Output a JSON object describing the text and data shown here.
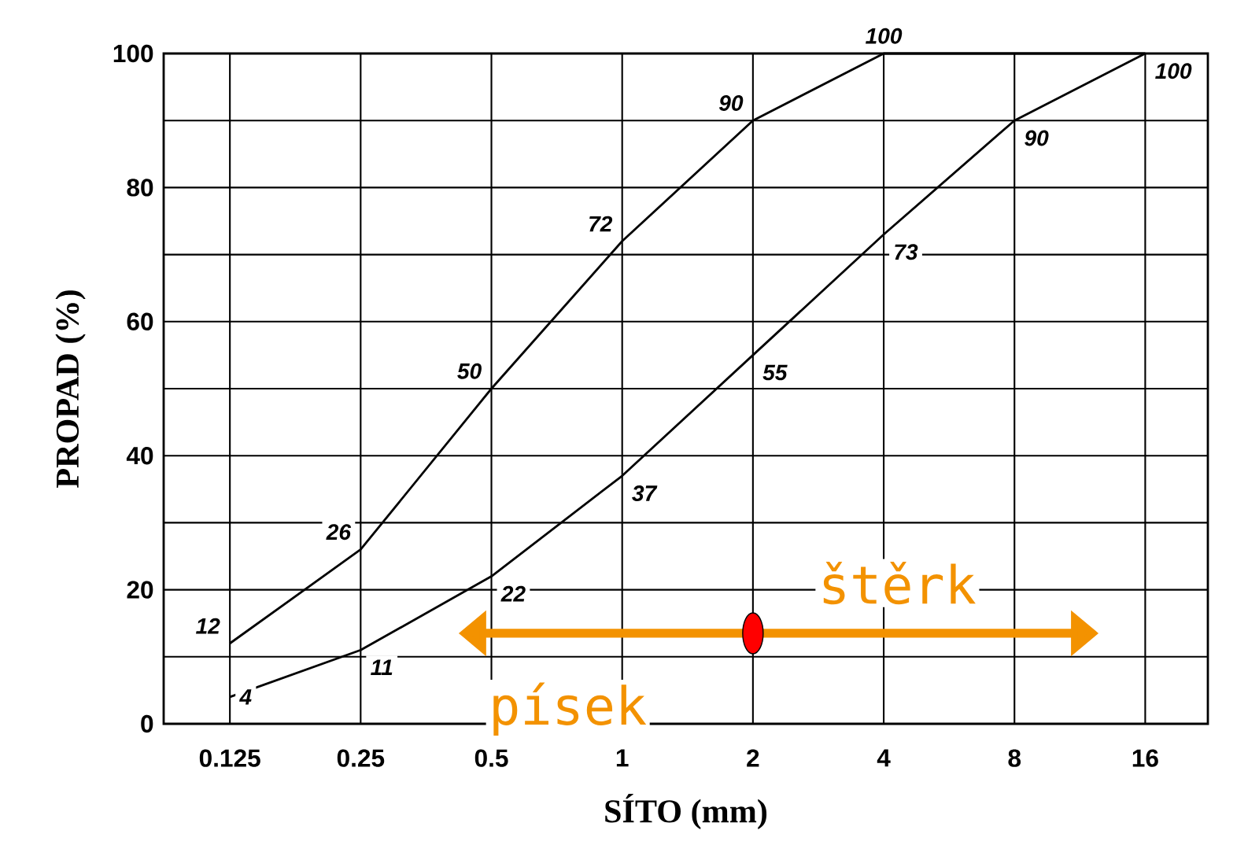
{
  "chart_data": {
    "type": "line",
    "xlabel": "SÍTO (mm)",
    "ylabel": "PROPAD (%)",
    "log": "x",
    "xlim": [
      0.088,
      22.3
    ],
    "ylim": [
      0,
      100
    ],
    "xticks": [
      0.125,
      0.25,
      0.5,
      1,
      2,
      4,
      8,
      16
    ],
    "yticks": [
      0,
      20,
      40,
      60,
      80,
      100
    ],
    "grid": true,
    "marker": "none",
    "line_style": "solid",
    "series": [
      {
        "color": "#000000",
        "x": [
          0.125,
          0.25,
          0.5,
          1,
          2,
          4,
          8,
          16
        ],
        "values": [
          12,
          26,
          50,
          72,
          90,
          100,
          100,
          100
        ],
        "value_labels": [
          "12",
          "26",
          "50",
          "72",
          "90",
          "100",
          null,
          null
        ]
      },
      {
        "color": "#000000",
        "x": [
          0.125,
          0.25,
          0.5,
          1,
          2,
          4,
          8,
          16
        ],
        "values": [
          4,
          11,
          22,
          37,
          55,
          73,
          90,
          100
        ],
        "value_labels": [
          "4",
          "11",
          "22",
          "37",
          "55",
          "73",
          "90",
          "100"
        ]
      }
    ],
    "annotations": [
      "písek",
      "štěrk"
    ]
  }
}
